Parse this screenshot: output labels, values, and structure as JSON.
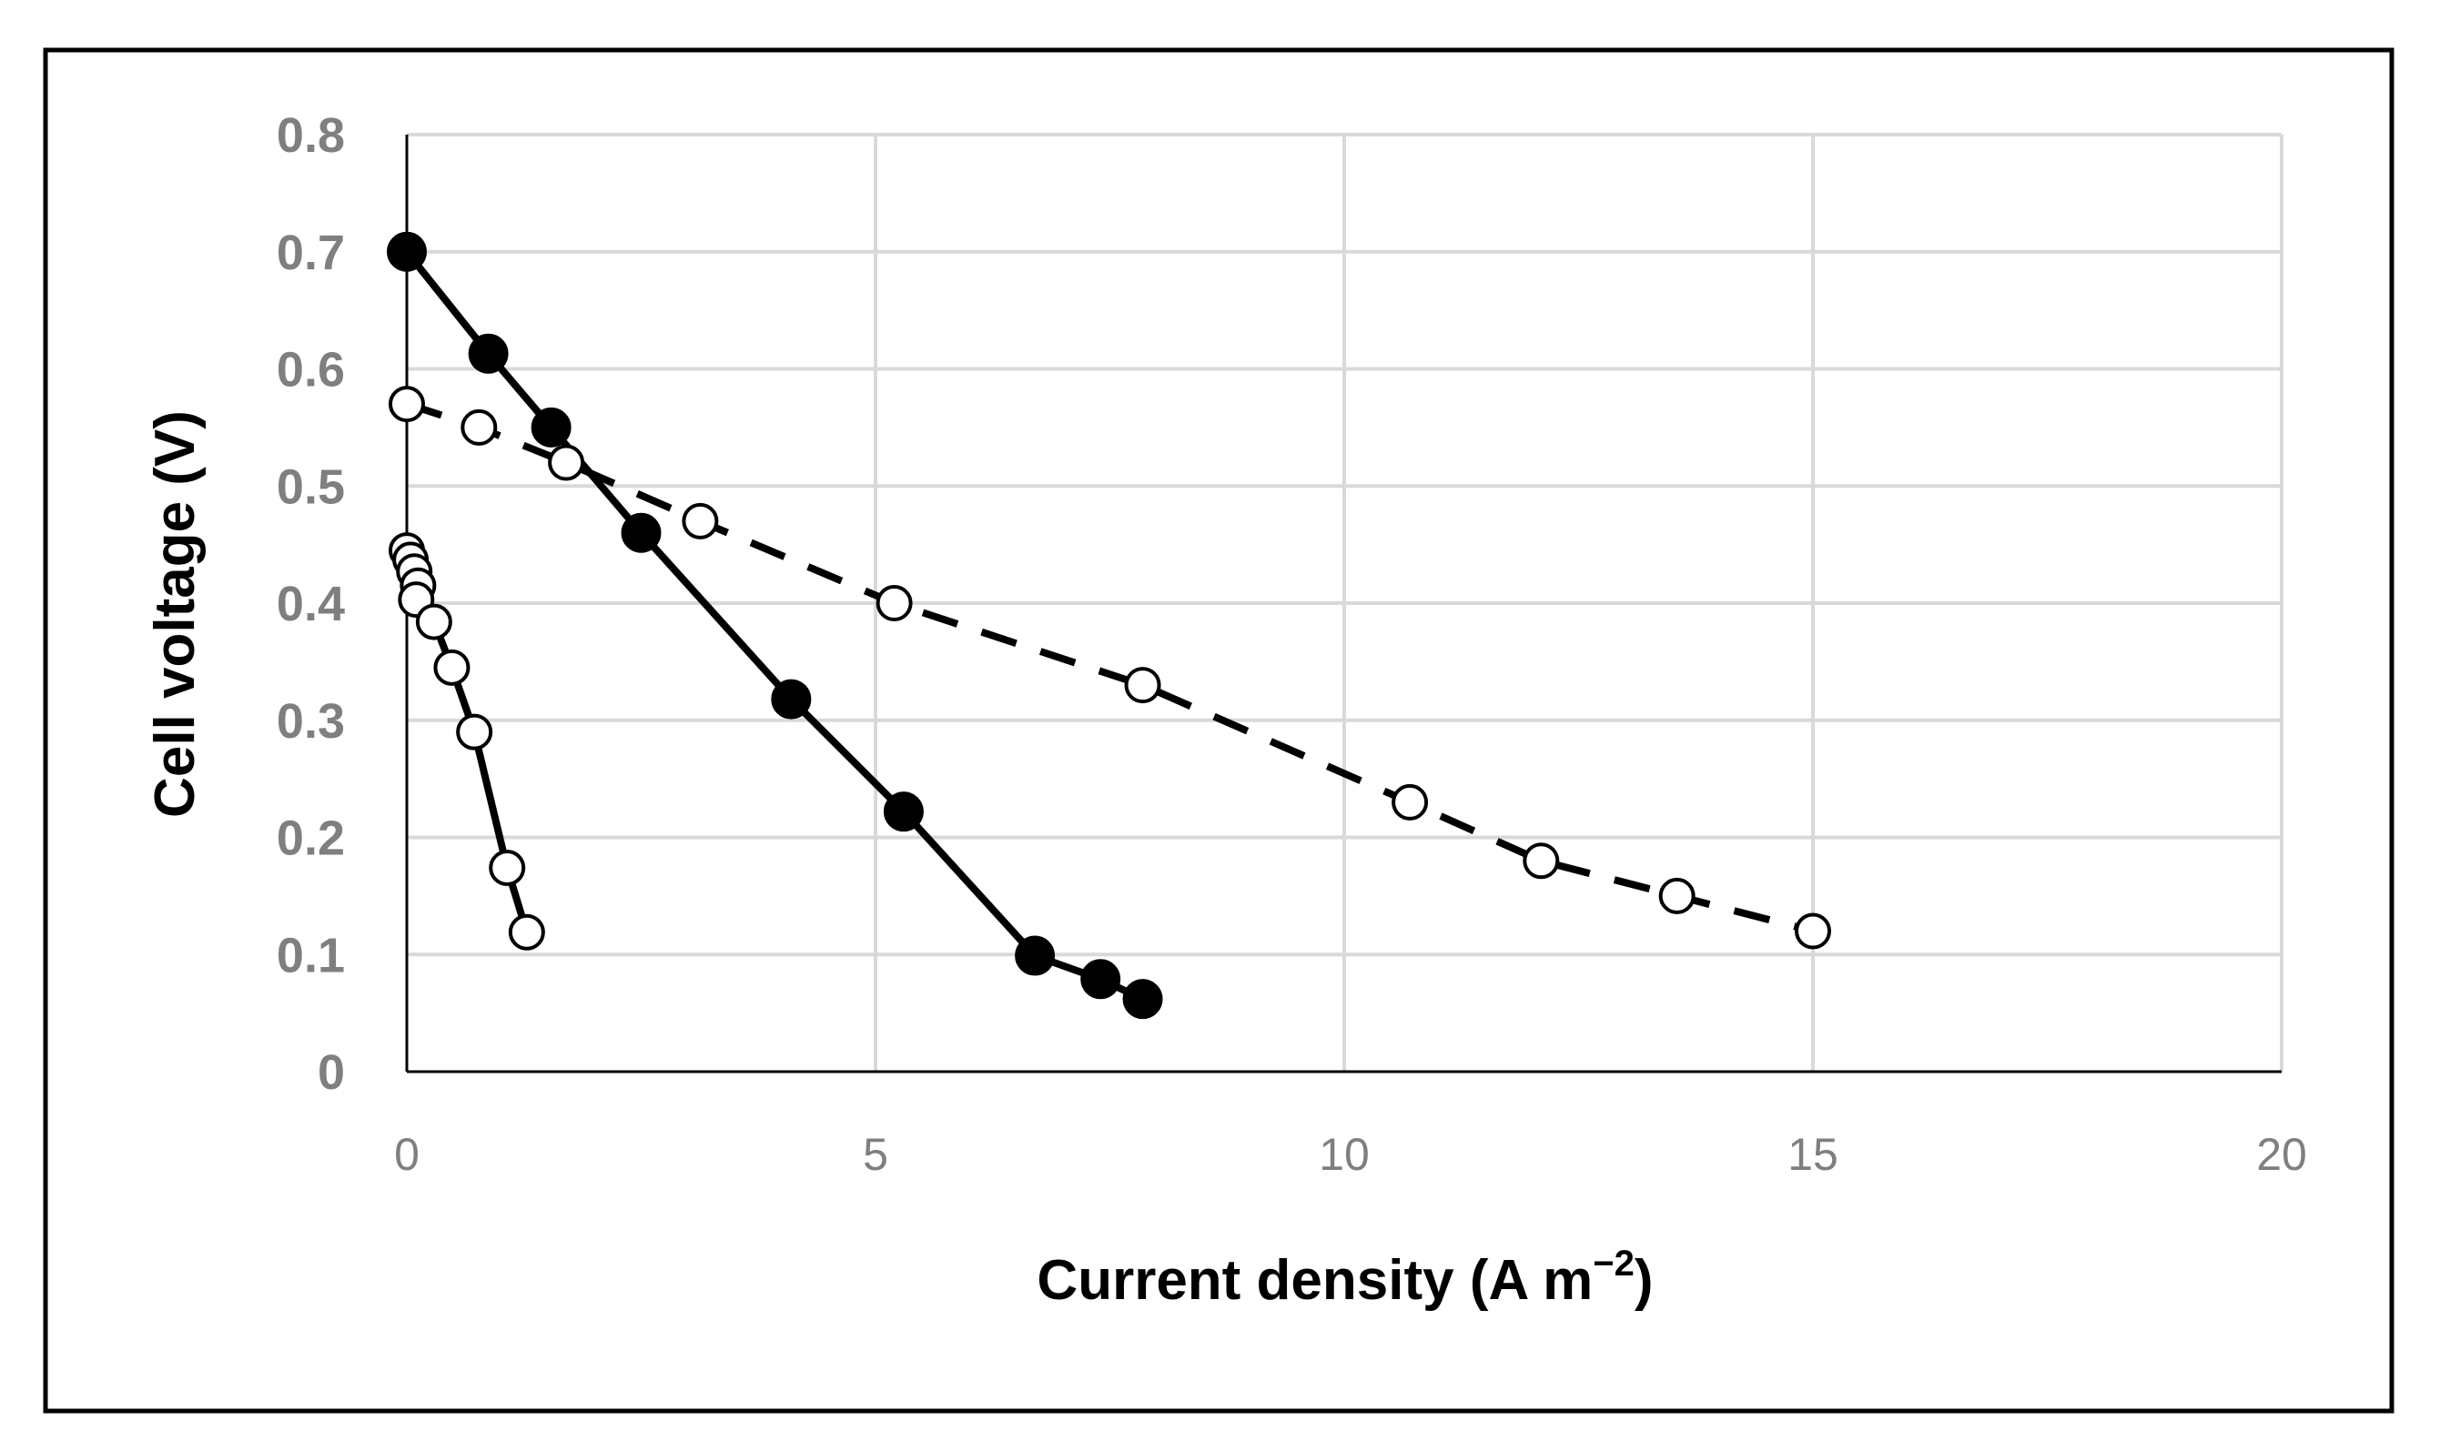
{
  "chart_data": {
    "type": "scatter",
    "title": "",
    "xlabel": "Current density (A m",
    "xlabel_superscript": "−2",
    "xlabel_suffix": ")",
    "ylabel": "Cell voltage (V)",
    "xlim": [
      0,
      20
    ],
    "ylim": [
      0,
      0.8
    ],
    "x_ticks": [
      0,
      5,
      10,
      15,
      20
    ],
    "x_tick_labels": [
      "0",
      "5",
      "10",
      "15",
      "20"
    ],
    "y_ticks": [
      0,
      0.1,
      0.2,
      0.3,
      0.4,
      0.5,
      0.6,
      0.7,
      0.8
    ],
    "y_tick_labels": [
      "0",
      "0.1",
      "0.2",
      "0.3",
      "0.4",
      "0.5",
      "0.6",
      "0.7",
      "0.8"
    ],
    "grid": true,
    "legend": "none",
    "series": [
      {
        "name": "filled-markers-solid-line",
        "marker": "filled-circle",
        "line": "solid",
        "color": "#000000",
        "x": [
          0,
          0.87,
          1.54,
          2.5,
          4.1,
          5.3,
          6.7,
          7.4,
          7.85
        ],
        "y": [
          0.7,
          0.613,
          0.55,
          0.46,
          0.318,
          0.222,
          0.099,
          0.079,
          0.062
        ]
      },
      {
        "name": "open-markers-dashed-line",
        "marker": "open-circle",
        "line": "dashed",
        "color": "#000000",
        "x": [
          0,
          0.77,
          1.7,
          3.13,
          5.2,
          7.85,
          10.7,
          12.1,
          13.55,
          15.0
        ],
        "y": [
          0.57,
          0.55,
          0.52,
          0.47,
          0.4,
          0.33,
          0.23,
          0.18,
          0.15,
          0.12
        ]
      },
      {
        "name": "open-markers-solid-line",
        "marker": "open-circle",
        "line": "solid",
        "color": "#000000",
        "x": [
          0,
          0.04,
          0.08,
          0.12,
          0.1,
          0.29,
          0.48,
          0.72,
          1.07,
          1.28
        ],
        "y": [
          0.445,
          0.437,
          0.427,
          0.415,
          0.403,
          0.384,
          0.345,
          0.29,
          0.174,
          0.119
        ]
      }
    ]
  }
}
